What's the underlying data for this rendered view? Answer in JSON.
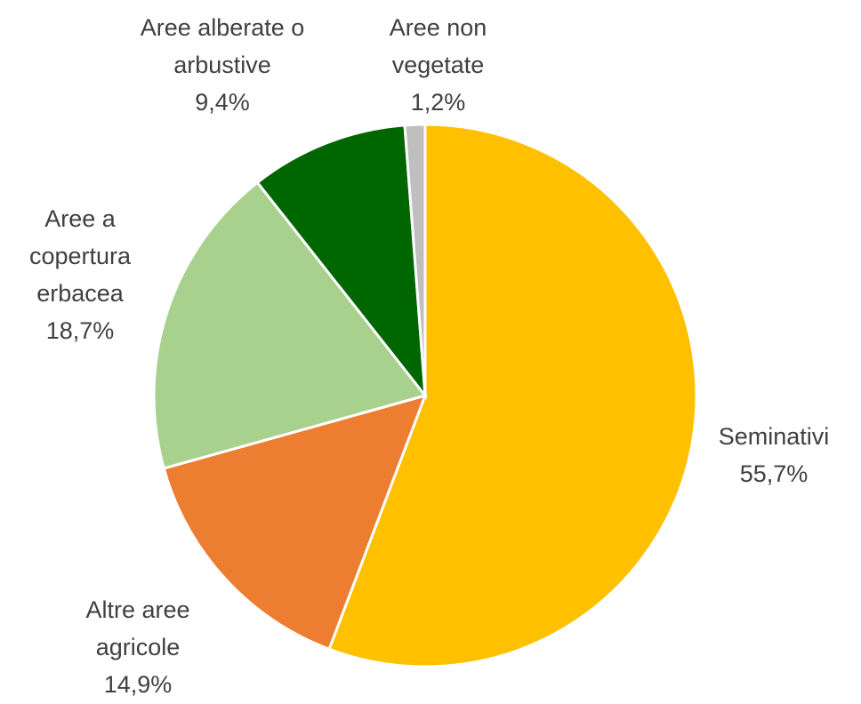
{
  "chart_data": {
    "type": "pie",
    "categories": [
      "Seminativi",
      "Altre aree agricole",
      "Aree a copertura erbacea",
      "Aree alberate o arbustive",
      "Aree non vegetate"
    ],
    "values": [
      55.7,
      14.9,
      18.7,
      9.4,
      1.2
    ],
    "value_labels": [
      "55,7%",
      "14,9%",
      "18,7%",
      "9,4%",
      "1,2%"
    ],
    "colors": [
      "#ffc000",
      "#ed7d31",
      "#a9d18e",
      "#006600",
      "#bfbfbf"
    ]
  }
}
